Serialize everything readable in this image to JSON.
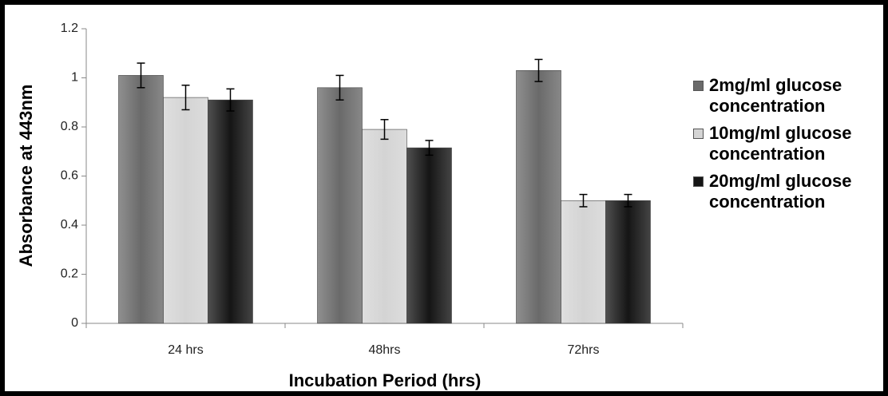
{
  "chart_data": {
    "type": "bar",
    "xlabel": "Incubation Period (hrs)",
    "ylabel": "Absorbance at 443nm",
    "categories": [
      "24 hrs",
      "48hrs",
      "72hrs"
    ],
    "series": [
      {
        "name": "2mg/ml glucose concentration",
        "color": "#6a6a6a",
        "values": [
          1.01,
          0.96,
          1.03
        ],
        "errors": [
          0.05,
          0.05,
          0.045
        ]
      },
      {
        "name": "10mg/ml glucose concentration",
        "color": "#d4d4d4",
        "values": [
          0.92,
          0.79,
          0.5
        ],
        "errors": [
          0.05,
          0.04,
          0.025
        ]
      },
      {
        "name": "20mg/ml glucose concentration",
        "color": "#151515",
        "values": [
          0.91,
          0.715,
          0.5
        ],
        "errors": [
          0.045,
          0.03,
          0.025
        ]
      }
    ],
    "ylim": [
      0,
      1.2
    ],
    "yticks": [
      0,
      0.2,
      0.4,
      0.6,
      0.8,
      1,
      1.2
    ],
    "legend": "right"
  }
}
